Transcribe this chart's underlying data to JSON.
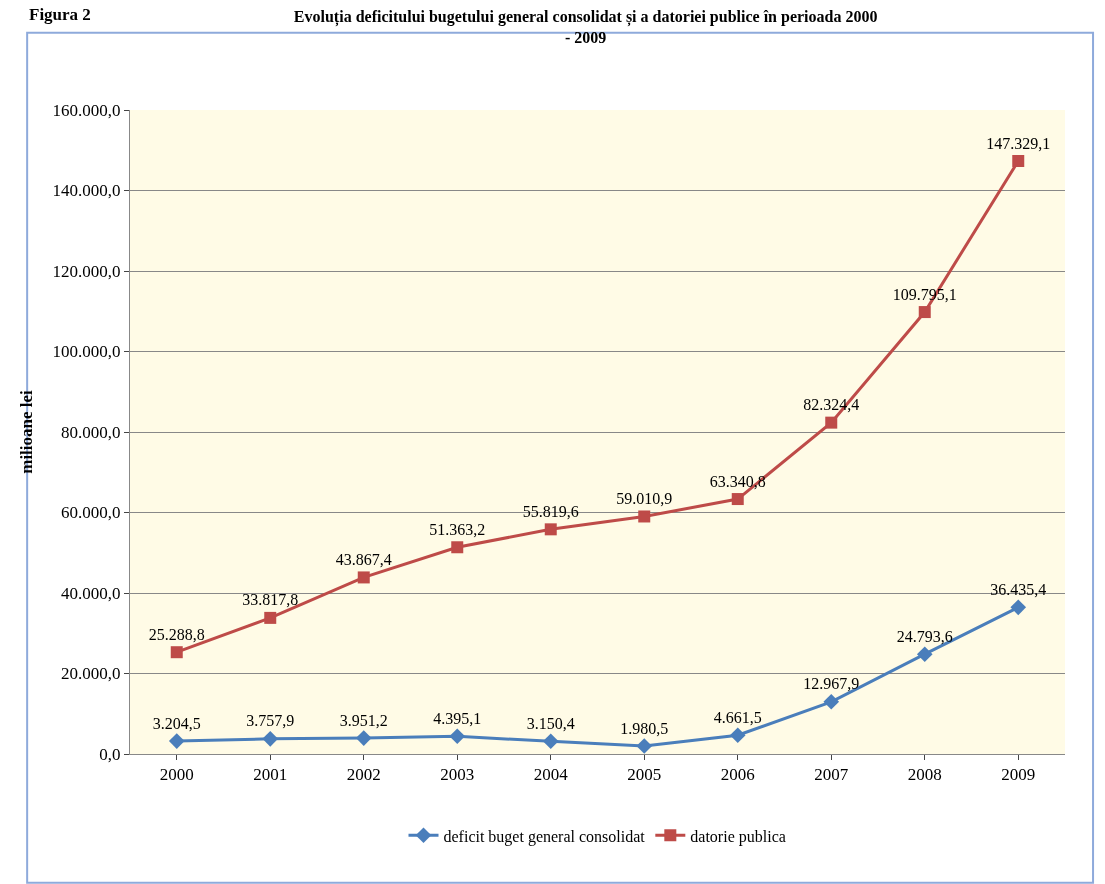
{
  "chart_data": {
    "type": "line",
    "title": "Evoluția deficitului bugetului general consolidat și a datoriei publice în perioada 2000 - 2009",
    "ylabel": "milioane lei",
    "annotations": [
      "Figura 2"
    ],
    "categories": [
      "2000",
      "2001",
      "2002",
      "2003",
      "2004",
      "2005",
      "2006",
      "2007",
      "2008",
      "2009"
    ],
    "series": [
      {
        "name": "deficit buget general consolidat",
        "color": "#4a7ebb",
        "marker": "diamond",
        "values": [
          3204.5,
          3757.9,
          3951.2,
          4395.1,
          3150.4,
          1980.5,
          4661.5,
          12967.9,
          24793.6,
          36435.4
        ],
        "value_labels": [
          "3.204,5",
          "3.757,9",
          "3.951,2",
          "4.395,1",
          "3.150,4",
          "1.980,5",
          "4.661,5",
          "12.967,9",
          "24.793,6",
          "36.435,4"
        ]
      },
      {
        "name": "datorie publica",
        "color": "#be4b48",
        "marker": "square",
        "values": [
          25288.8,
          33817.8,
          43867.4,
          51363.2,
          55819.6,
          59010.9,
          63340.8,
          82324.4,
          109795.1,
          147329.1
        ],
        "value_labels": [
          "25.288,8",
          "33.817,8",
          "43.867,4",
          "51.363,2",
          "55.819,6",
          "59.010,9",
          "63.340,8",
          "82.324,4",
          "109.795,1",
          "147.329,1"
        ]
      }
    ],
    "ylim": [
      0,
      160000
    ],
    "yticks": [
      {
        "value": 0,
        "label": "0,0"
      },
      {
        "value": 20000,
        "label": "20.000,0"
      },
      {
        "value": 40000,
        "label": "40.000,0"
      },
      {
        "value": 60000,
        "label": "60.000,0"
      },
      {
        "value": 80000,
        "label": "80.000,0"
      },
      {
        "value": 100000,
        "label": "100.000,0"
      },
      {
        "value": 120000,
        "label": "120.000,0"
      },
      {
        "value": 140000,
        "label": "140.000,0"
      },
      {
        "value": 160000,
        "label": "160.000,0"
      }
    ],
    "grid": "y",
    "legend": "bottom",
    "line_style": "solid"
  }
}
